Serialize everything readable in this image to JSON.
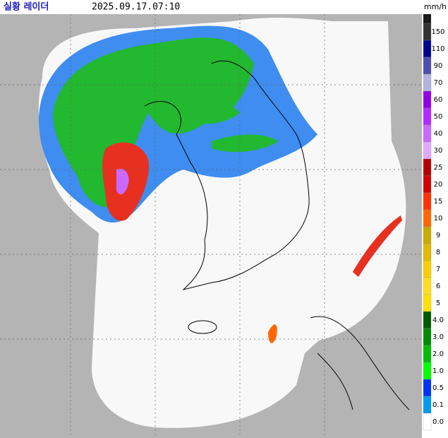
{
  "header": {
    "title": "실황 레이더",
    "time": "2025.09.17.07:10",
    "unit": "mm/h"
  },
  "legend": [
    {
      "label": "150",
      "color": "#333333"
    },
    {
      "label": "110",
      "color": "#000390"
    },
    {
      "label": "90",
      "color": "#4c4eb1"
    },
    {
      "label": "70",
      "color": "#b3b4de"
    },
    {
      "label": "60",
      "color": "#9300e4"
    },
    {
      "label": "50",
      "color": "#b329ff"
    },
    {
      "label": "40",
      "color": "#c969ff"
    },
    {
      "label": "30",
      "color": "#e0a9ff"
    },
    {
      "label": "25",
      "color": "#b40000"
    },
    {
      "label": "20",
      "color": "#d20000"
    },
    {
      "label": "15",
      "color": "#ff3200"
    },
    {
      "label": "10",
      "color": "#ff6600"
    },
    {
      "label": "9",
      "color": "#ccaa00"
    },
    {
      "label": "8",
      "color": "#e0b900"
    },
    {
      "label": "7",
      "color": "#f9cd00"
    },
    {
      "label": "6",
      "color": "#ffdc1f"
    },
    {
      "label": "5",
      "color": "#ffe100"
    },
    {
      "label": "4.0",
      "color": "#005a00"
    },
    {
      "label": "3.0",
      "color": "#008c00"
    },
    {
      "label": "2.0",
      "color": "#00be00"
    },
    {
      "label": "1.0",
      "color": "#00ff00"
    },
    {
      "label": "0.5",
      "color": "#0033f5"
    },
    {
      "label": "0.1",
      "color": "#009bf5"
    },
    {
      "label": "0.0",
      "color": "#ffffff"
    }
  ]
}
